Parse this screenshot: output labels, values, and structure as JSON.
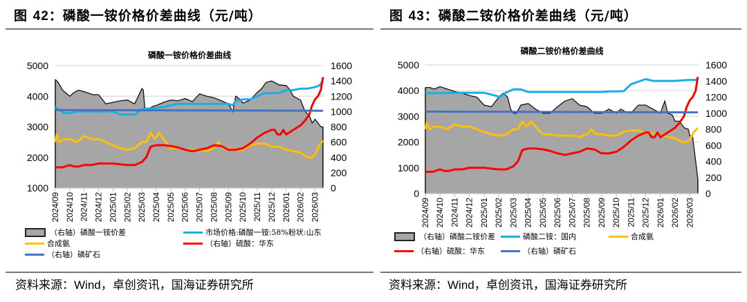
{
  "figures": [
    {
      "label_prefix": "图 ",
      "number": "42",
      "label_suffix": "：磷酸一铵价格价差曲线（元/吨）",
      "source_prefix": "资料来源：",
      "source_wind": "Wind",
      "source_rest": "，卓创资讯，国海证券研究所",
      "legend": [
        {
          "label": "（右轴）磷酸一铵价差",
          "kind": "box"
        },
        {
          "label": "市场价格:磷酸一铵:58%粉状:山东",
          "kind": "line",
          "color": "#1aaee8"
        },
        {
          "label": "合成氨",
          "kind": "line",
          "color": "#ffc000"
        },
        {
          "label": "（右轴）硫酸：华东",
          "kind": "line",
          "color": "#ff0000"
        },
        {
          "label": "（右轴）磷矿石",
          "kind": "line",
          "color": "#4472c4"
        }
      ]
    },
    {
      "label_prefix": "图 ",
      "number": "43",
      "label_suffix": "：磷酸二铵价格价差曲线（元/吨）",
      "source_prefix": "资料来源：",
      "source_wind": "Wind",
      "source_rest": "，卓创资讯，国海证券研究所",
      "legend": [
        {
          "label": "（右轴）磷酸二铵价差",
          "kind": "box"
        },
        {
          "label": "磷酸二铵：国内",
          "kind": "line",
          "color": "#1aaee8"
        },
        {
          "label": "合成氨",
          "kind": "line",
          "color": "#ffc000"
        },
        {
          "label": "（右轴）硫酸：华东",
          "kind": "line",
          "color": "#ff0000"
        },
        {
          "label": "（右轴）磷矿石",
          "kind": "line",
          "color": "#4472c4"
        }
      ]
    }
  ],
  "chart_data": [
    {
      "type": "line",
      "title": "磷酸一铵价格价差曲线",
      "categories": [
        "2024/09",
        "2024/10",
        "2024/11",
        "2024/12",
        "2025/01",
        "2025/02",
        "2025/03",
        "2025/04",
        "2025/05",
        "2025/06",
        "2025/07",
        "2025/08",
        "2025/09",
        "2025/10",
        "2025/11",
        "2025/12",
        "2026/01",
        "2026/02",
        "2026/03"
      ],
      "ylim_left": [
        1000,
        5000
      ],
      "yticks_left": [
        "1000",
        "2000",
        "3000",
        "4000",
        "5000"
      ],
      "ylim_right": [
        0,
        1600
      ],
      "yticks_right": [
        "0",
        "200",
        "400",
        "600",
        "800",
        "1000",
        "1200",
        "1400",
        "1600"
      ],
      "series": [
        {
          "name": "（右轴）磷酸一铵价差",
          "axis": "right",
          "kind": "area",
          "color": "#a6a6a6",
          "x": [
            0,
            0.2,
            0.5,
            1,
            1.3,
            1.6,
            2,
            2.3,
            2.6,
            3,
            3.5,
            4,
            4.5,
            5,
            5.5,
            6,
            6.1,
            6.2,
            6.4,
            6.6,
            6.8,
            7,
            7.5,
            8,
            8.5,
            9,
            9.5,
            10,
            10.5,
            11,
            11.5,
            12,
            12.3,
            12.5,
            12.8,
            13,
            13.5,
            14,
            14.3,
            14.6,
            15,
            15.5,
            16,
            16.2,
            16.5,
            17,
            17.3,
            17.6,
            17.8,
            18,
            18.2,
            18.4,
            18.55
          ],
          "values": [
            1420,
            1380,
            1280,
            1200,
            1250,
            1280,
            1260,
            1240,
            1220,
            1220,
            1100,
            1120,
            1140,
            1150,
            1100,
            1300,
            1280,
            1050,
            1030,
            1050,
            1070,
            1080,
            1120,
            1150,
            1140,
            1170,
            1130,
            1230,
            1200,
            1180,
            1140,
            1100,
            1000,
            1200,
            1160,
            1110,
            1150,
            1250,
            1300,
            1380,
            1400,
            1350,
            1340,
            1300,
            1200,
            1150,
            1000,
            950,
            850,
            900,
            850,
            800,
            800
          ]
        },
        {
          "name": "市场价格:磷酸一铵:58%粉状:山东",
          "axis": "left",
          "kind": "line",
          "color": "#1aaee8",
          "x": [
            0,
            0.3,
            0.6,
            1,
            1.5,
            2,
            2.5,
            3,
            3.5,
            4,
            4.5,
            5,
            5.5,
            6,
            6.5,
            7,
            7.5,
            8,
            8.5,
            9,
            9.5,
            10,
            10.5,
            11,
            11.5,
            12,
            12.3,
            12.5,
            13,
            13.5,
            14,
            14.5,
            15,
            15.5,
            16,
            16.5,
            17,
            17.5,
            18,
            18.3,
            18.55
          ],
          "values": [
            3650,
            3550,
            3450,
            3450,
            3500,
            3500,
            3500,
            3500,
            3500,
            3500,
            3400,
            3400,
            3400,
            3580,
            3600,
            3620,
            3650,
            3700,
            3750,
            3750,
            3750,
            3750,
            3750,
            3750,
            3750,
            3750,
            3700,
            3850,
            3900,
            3900,
            4000,
            4100,
            4100,
            4100,
            4200,
            4200,
            4250,
            4250,
            4300,
            4350,
            4500
          ]
        },
        {
          "name": "合成氨",
          "axis": "left",
          "kind": "line",
          "color": "#ffc000",
          "x": [
            0,
            0.1,
            0.3,
            0.6,
            1,
            1.5,
            2,
            2.5,
            3,
            3.5,
            4,
            4.5,
            5,
            5.5,
            6,
            6.3,
            6.6,
            6.9,
            7.2,
            7.5,
            8,
            8.5,
            9,
            9.5,
            10,
            10.5,
            11,
            11.3,
            11.6,
            12,
            12.5,
            13,
            13.5,
            14,
            14.5,
            15,
            15.5,
            16,
            16.5,
            17,
            17.5,
            17.8,
            18,
            18.3,
            18.55
          ],
          "values": [
            2500,
            2750,
            2500,
            2600,
            2600,
            2500,
            2700,
            2600,
            2600,
            2500,
            2400,
            2300,
            2250,
            2300,
            2500,
            2500,
            2800,
            2600,
            2800,
            2600,
            2300,
            2300,
            2250,
            2250,
            2250,
            2200,
            2300,
            2500,
            2300,
            2300,
            2250,
            2250,
            2400,
            2450,
            2450,
            2350,
            2350,
            2250,
            2200,
            2150,
            2000,
            2000,
            2100,
            2400,
            2550
          ]
        },
        {
          "name": "（右轴）硫酸：华东",
          "axis": "right",
          "kind": "line",
          "color": "#ff0000",
          "x": [
            0,
            0.5,
            1,
            1.3,
            1.6,
            2,
            2.5,
            3,
            3.5,
            4,
            4.5,
            5,
            5.5,
            6,
            6.3,
            6.6,
            7,
            7.5,
            8,
            8.5,
            9,
            9.5,
            10,
            10.5,
            11,
            11.5,
            12,
            12.5,
            13,
            13.5,
            14,
            14.5,
            15,
            15.2,
            15.4,
            15.6,
            15.8,
            16,
            16.5,
            17,
            17.3,
            17.6,
            17.8,
            18,
            18.2,
            18.4,
            18.55
          ],
          "values": [
            270,
            270,
            300,
            280,
            280,
            300,
            300,
            320,
            320,
            320,
            310,
            300,
            300,
            340,
            400,
            540,
            560,
            560,
            550,
            530,
            500,
            480,
            500,
            520,
            560,
            550,
            500,
            500,
            520,
            580,
            660,
            720,
            760,
            760,
            700,
            700,
            760,
            700,
            760,
            820,
            880,
            960,
            1080,
            1160,
            1200,
            1280,
            1450
          ]
        },
        {
          "name": "（右轴）磷矿石",
          "axis": "right",
          "kind": "line",
          "color": "#4472c4",
          "x": [
            0,
            18.55
          ],
          "values": [
            1020,
            1010
          ]
        }
      ]
    },
    {
      "type": "line",
      "title": "磷酸二铵价格价差曲线",
      "categories": [
        "2024/09",
        "2024/10",
        "2024/11",
        "2024/12",
        "2025/01",
        "2025/02",
        "2025/03",
        "2025/04",
        "2025/05",
        "2025/06",
        "2025/07",
        "2025/08",
        "2025/09",
        "2025/10",
        "2025/11",
        "2025/12",
        "2026/01",
        "2026/02",
        "2026/03"
      ],
      "ylim_left": [
        0,
        5000
      ],
      "yticks_left": [
        "0",
        "1000",
        "2000",
        "3000",
        "4000",
        "5000"
      ],
      "ylim_right": [
        0,
        1600
      ],
      "yticks_right": [
        "0",
        "200",
        "400",
        "600",
        "800",
        "1000",
        "1200",
        "1400",
        "1600"
      ],
      "series": [
        {
          "name": "（右轴）磷酸二铵价差",
          "axis": "right",
          "kind": "area",
          "color": "#a6a6a6",
          "x": [
            0,
            0.3,
            0.6,
            1,
            1.5,
            2,
            2.5,
            3,
            3.5,
            4,
            4.5,
            5,
            5.3,
            5.6,
            5.8,
            6,
            6.2,
            6.5,
            7,
            7.5,
            8,
            8.5,
            9,
            9.5,
            10,
            10.5,
            11,
            11.5,
            12,
            12.5,
            13,
            13.3,
            13.6,
            14,
            14.5,
            15,
            15.5,
            16,
            16.3,
            16.5,
            16.8,
            17,
            17.3,
            17.6,
            17.9,
            18,
            18.2,
            18.4,
            18.55
          ],
          "values": [
            1320,
            1320,
            1300,
            1330,
            1300,
            1270,
            1250,
            1220,
            1200,
            1100,
            1080,
            1200,
            1250,
            1200,
            1050,
            1000,
            1000,
            1100,
            1120,
            1050,
            1000,
            1000,
            1080,
            1150,
            1180,
            1100,
            1080,
            1000,
            1000,
            1050,
            1000,
            1050,
            1020,
            1000,
            1100,
            1100,
            1050,
            1000,
            1150,
            1000,
            980,
            900,
            900,
            820,
            800,
            720,
            700,
            400,
            180
          ]
        },
        {
          "name": "磷酸二铵：国内",
          "axis": "left",
          "kind": "line",
          "color": "#1aaee8",
          "x": [
            0,
            1,
            2,
            3,
            4,
            4.8,
            5.1,
            5.4,
            6,
            6.5,
            7,
            8,
            9,
            10,
            11,
            12,
            12.5,
            13,
            13.5,
            14,
            14.5,
            15,
            15.5,
            16,
            16.5,
            17,
            17.5,
            18,
            18.55
          ],
          "values": [
            3900,
            3900,
            3920,
            3920,
            3920,
            3800,
            3750,
            3900,
            4050,
            4050,
            3950,
            3950,
            3950,
            3950,
            3950,
            3950,
            3970,
            3970,
            3980,
            4250,
            4350,
            4450,
            4380,
            4380,
            4380,
            4380,
            4400,
            4420,
            4420
          ]
        },
        {
          "name": "合成氨",
          "axis": "left",
          "kind": "line",
          "color": "#ffc000",
          "x": [
            0,
            0.1,
            0.3,
            0.6,
            1,
            1.5,
            2,
            2.5,
            3,
            3.5,
            4,
            4.5,
            5,
            5.5,
            6,
            6.3,
            6.6,
            6.9,
            7.2,
            7.5,
            8,
            8.5,
            9,
            9.5,
            10,
            10.5,
            11,
            11.3,
            11.6,
            12,
            12.5,
            13,
            13.5,
            14,
            14.5,
            15,
            15.5,
            16,
            16.5,
            17,
            17.5,
            17.8,
            18,
            18.3,
            18.55
          ],
          "values": [
            2500,
            2750,
            2500,
            2600,
            2600,
            2500,
            2700,
            2600,
            2600,
            2500,
            2400,
            2300,
            2250,
            2300,
            2500,
            2500,
            2800,
            2600,
            2800,
            2600,
            2300,
            2300,
            2250,
            2250,
            2250,
            2200,
            2300,
            2500,
            2300,
            2300,
            2250,
            2250,
            2400,
            2450,
            2450,
            2350,
            2350,
            2250,
            2200,
            2150,
            2000,
            2000,
            2100,
            2400,
            2550
          ]
        },
        {
          "name": "（右轴）硫酸：华东",
          "axis": "right",
          "kind": "line",
          "color": "#ff0000",
          "x": [
            0,
            0.5,
            1,
            1.3,
            1.6,
            2,
            2.5,
            3,
            3.5,
            4,
            4.5,
            5,
            5.5,
            6,
            6.3,
            6.6,
            7,
            7.5,
            8,
            8.5,
            9,
            9.5,
            10,
            10.5,
            11,
            11.5,
            12,
            12.5,
            13,
            13.5,
            14,
            14.5,
            15,
            15.2,
            15.4,
            15.6,
            15.8,
            16,
            16.5,
            17,
            17.3,
            17.6,
            17.8,
            18,
            18.2,
            18.4,
            18.55
          ],
          "values": [
            270,
            270,
            300,
            280,
            280,
            300,
            300,
            320,
            320,
            320,
            310,
            300,
            300,
            340,
            400,
            540,
            560,
            560,
            550,
            530,
            500,
            480,
            500,
            520,
            560,
            550,
            500,
            500,
            520,
            580,
            660,
            720,
            760,
            760,
            700,
            700,
            760,
            700,
            760,
            820,
            880,
            960,
            1080,
            1160,
            1200,
            1280,
            1450
          ]
        },
        {
          "name": "（右轴）磷矿石",
          "axis": "right",
          "kind": "line",
          "color": "#4472c4",
          "x": [
            0,
            18.55
          ],
          "values": [
            1020,
            1010
          ]
        }
      ]
    }
  ]
}
